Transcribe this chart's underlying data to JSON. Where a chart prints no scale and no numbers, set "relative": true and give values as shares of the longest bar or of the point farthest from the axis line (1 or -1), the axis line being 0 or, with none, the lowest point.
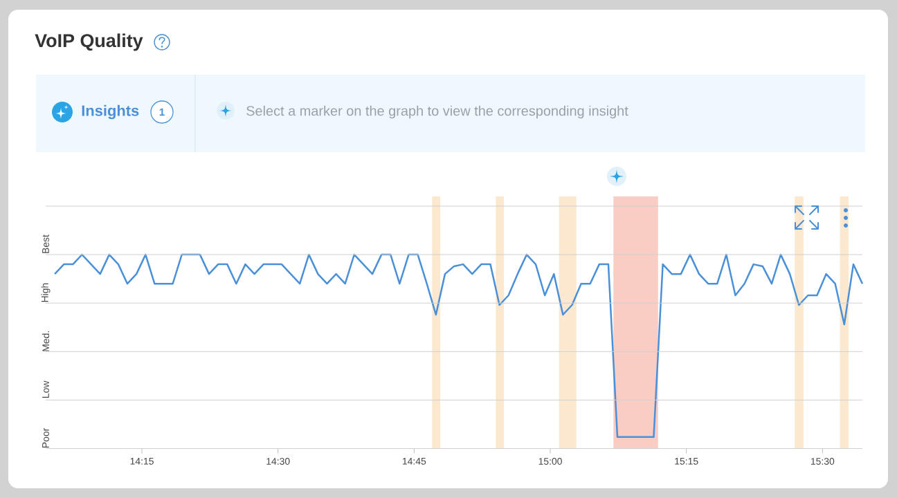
{
  "chart_data": {
    "type": "line",
    "title": "VoIP Quality",
    "annotations": [
      "Insights",
      "1",
      "Select a marker on the graph to view the corresponding insight",
      "Best",
      "High",
      "Med.",
      "Low",
      "Poor"
    ],
    "relative": true,
    "x": [
      14.09,
      14.1067,
      14.1233,
      14.14,
      14.1567,
      14.1733,
      14.19,
      14.2067,
      14.2233,
      14.24,
      14.2567,
      14.2733,
      14.29,
      14.3067,
      14.3233,
      14.34,
      14.3567,
      14.3733,
      14.39,
      14.4067,
      14.4233,
      14.44,
      14.4567,
      14.4733,
      14.49,
      14.5067,
      14.5233,
      14.54,
      14.5567,
      14.5733,
      14.59,
      14.6067,
      14.6233,
      14.64,
      14.6567,
      14.6733,
      14.69,
      14.7067,
      14.7233,
      14.74,
      14.7567,
      14.7733,
      14.79,
      14.8067,
      14.8233,
      14.84,
      14.8567,
      14.8733,
      14.89,
      14.9067,
      14.9233,
      14.94,
      14.9567,
      14.9733,
      14.99,
      15.0067,
      15.0233,
      15.04,
      15.0567,
      15.0733,
      15.09,
      15.1067,
      15.1233,
      15.14,
      15.1567,
      15.1733,
      15.19,
      15.2067,
      15.2233,
      15.24,
      15.2567,
      15.2733,
      15.29,
      15.3067,
      15.3233,
      15.34,
      15.3567,
      15.3733,
      15.39,
      15.4067,
      15.4233,
      15.44,
      15.4567,
      15.4733,
      15.49,
      15.5067,
      15.5233,
      15.54,
      15.5567,
      15.5733
    ],
    "values": [
      0.9,
      0.95,
      0.95,
      1,
      0.95,
      0.9,
      1,
      0.95,
      0.85,
      0.9,
      1,
      0.85,
      0.85,
      0.85,
      1,
      1,
      1,
      0.9,
      0.95,
      0.95,
      0.85,
      0.95,
      0.9,
      0.95,
      0.95,
      0.95,
      0.9,
      0.85,
      1,
      0.9,
      0.85,
      0.9,
      0.85,
      1,
      0.95,
      0.9,
      1,
      1,
      0.85,
      1,
      1,
      0.85,
      0.69,
      0.9,
      0.94,
      0.95,
      0.9,
      0.95,
      0.95,
      0.74,
      0.79,
      0.9,
      1,
      0.95,
      0.79,
      0.9,
      0.69,
      0.74,
      0.85,
      0.85,
      0.95,
      0.95,
      0.06,
      0.06,
      0.06,
      0.06,
      0.06,
      0.95,
      0.9,
      0.9,
      1,
      0.9,
      0.85,
      0.85,
      1,
      0.79,
      0.85,
      0.95,
      0.94,
      0.85,
      1,
      0.9,
      0.74,
      0.79,
      0.79,
      0.9,
      0.85,
      0.64,
      0.95,
      0.85
    ],
    "color": "#4a90d9",
    "xlim": [
      14.0733,
      15.5733
    ],
    "xticks": [
      {
        "value": 14.25,
        "label": "14:15"
      },
      {
        "value": 14.5,
        "label": "14:30"
      },
      {
        "value": 14.75,
        "label": "14:45"
      },
      {
        "value": 15,
        "label": "15:00"
      },
      {
        "value": 15.25,
        "label": "15:15"
      },
      {
        "value": 15.5,
        "label": "15:30"
      }
    ],
    "bands": [
      {
        "axis": "x",
        "from": 14.783,
        "to": 14.798,
        "color": "#fbe8cf"
      },
      {
        "axis": "x",
        "from": 14.9,
        "to": 14.915,
        "color": "#fbe8cf"
      },
      {
        "axis": "x",
        "from": 15.016,
        "to": 15.048,
        "color": "#fbe8cf"
      },
      {
        "axis": "x",
        "from": 15.116,
        "to": 15.198,
        "color": "#f9cdc4"
      },
      {
        "axis": "x",
        "from": 15.449,
        "to": 15.465,
        "color": "#fbe8cf"
      },
      {
        "axis": "x",
        "from": 15.532,
        "to": 15.548,
        "color": "#fbe8cf"
      }
    ],
    "grid": "y",
    "marker": "none",
    "line_style": "solid"
  }
}
